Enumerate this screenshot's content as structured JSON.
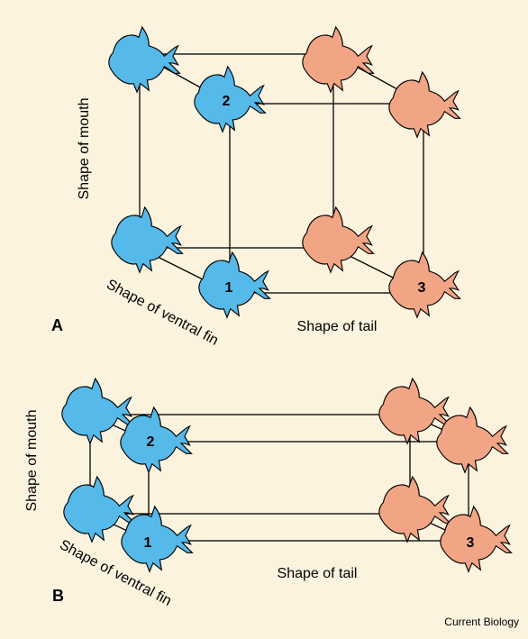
{
  "colors": {
    "background": "#fbf3de",
    "fish_blue": "#55b9ea",
    "fish_salmon": "#f2a585",
    "outline": "#000000"
  },
  "panel_a": {
    "label": "A",
    "axis_mouth": "Shape of mouth",
    "axis_fin": "Shape of ventral fin",
    "axis_tail": "Shape of tail",
    "fish_numbers": [
      "2",
      "1",
      "3"
    ]
  },
  "panel_b": {
    "label": "B",
    "axis_mouth": "Shape of mouth",
    "axis_fin": "Shape of ventral fin",
    "axis_tail": "Shape of tail",
    "fish_numbers": [
      "2",
      "1",
      "3"
    ]
  },
  "credit": "Current Biology"
}
